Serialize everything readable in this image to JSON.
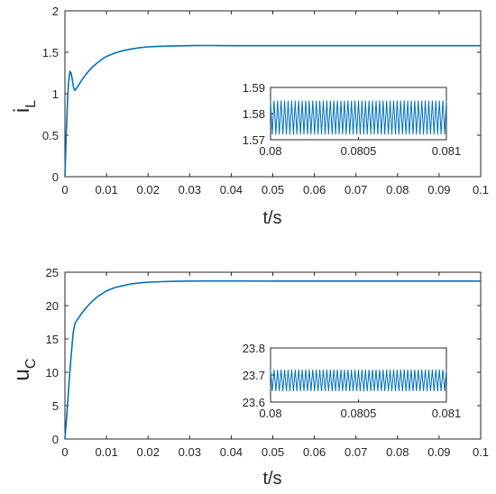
{
  "chart_data": [
    {
      "type": "line",
      "title": "",
      "xlabel": "t/s",
      "ylabel": {
        "base": "i",
        "subscript": "L"
      },
      "xlim": [
        0,
        0.1
      ],
      "ylim": [
        0,
        2
      ],
      "x_ticks": [
        "0",
        "0.01",
        "0.02",
        "0.03",
        "0.04",
        "0.05",
        "0.06",
        "0.07",
        "0.08",
        "0.09",
        "0.1"
      ],
      "y_ticks": [
        "0",
        "0.5",
        "1",
        "1.5",
        "2"
      ],
      "grid": false,
      "series": [
        {
          "color": "#0072BD",
          "x": [
            0,
            0.0003,
            0.0006,
            0.0009,
            0.0012,
            0.0015,
            0.0018,
            0.0021,
            0.0024,
            0.0027,
            0.003,
            0.004,
            0.005,
            0.006,
            0.007,
            0.008,
            0.009,
            0.01,
            0.012,
            0.014,
            0.016,
            0.018,
            0.02,
            0.022,
            0.025,
            0.028,
            0.031,
            0.034,
            0.037,
            0.04,
            0.05,
            0.06,
            0.07,
            0.08,
            0.09,
            0.1
          ],
          "y": [
            0,
            0.5,
            0.9,
            1.15,
            1.27,
            1.25,
            1.16,
            1.07,
            1.04,
            1.06,
            1.08,
            1.16,
            1.23,
            1.29,
            1.34,
            1.38,
            1.42,
            1.45,
            1.49,
            1.52,
            1.54,
            1.555,
            1.565,
            1.57,
            1.575,
            1.578,
            1.58,
            1.582,
            1.58,
            1.579,
            1.579,
            1.579,
            1.579,
            1.579,
            1.579,
            1.579
          ]
        }
      ],
      "inset": {
        "xlim": [
          0.08,
          0.081
        ],
        "ylim": [
          1.57,
          1.59
        ],
        "x_ticks": [
          "0.08",
          "0.0805",
          "0.081"
        ],
        "y_ticks": [
          "1.57",
          "1.58",
          "1.59"
        ],
        "ripple": {
          "mean": 1.5785,
          "amplitude": 0.0065,
          "cycles": 50
        }
      }
    },
    {
      "type": "line",
      "title": "",
      "xlabel": "t/s",
      "ylabel": {
        "base": "u",
        "subscript": "C"
      },
      "xlim": [
        0,
        0.1
      ],
      "ylim": [
        0,
        25
      ],
      "x_ticks": [
        "0",
        "0.01",
        "0.02",
        "0.03",
        "0.04",
        "0.05",
        "0.06",
        "0.07",
        "0.08",
        "0.09",
        "0.1"
      ],
      "y_ticks": [
        "0",
        "5",
        "10",
        "15",
        "20",
        "25"
      ],
      "grid": false,
      "series": [
        {
          "color": "#0072BD",
          "x": [
            0,
            0.0005,
            0.001,
            0.0015,
            0.002,
            0.0024,
            0.003,
            0.004,
            0.005,
            0.006,
            0.007,
            0.008,
            0.009,
            0.01,
            0.012,
            0.014,
            0.016,
            0.018,
            0.02,
            0.023,
            0.026,
            0.03,
            0.035,
            0.04,
            0.05,
            0.06,
            0.07,
            0.08,
            0.09,
            0.1
          ],
          "y": [
            0,
            4,
            8.5,
            12.5,
            16,
            17.3,
            17.9,
            18.8,
            19.6,
            20.3,
            20.9,
            21.4,
            21.8,
            22.2,
            22.7,
            23.0,
            23.25,
            23.4,
            23.5,
            23.58,
            23.63,
            23.67,
            23.69,
            23.69,
            23.68,
            23.68,
            23.68,
            23.68,
            23.68,
            23.68
          ]
        }
      ],
      "inset": {
        "xlim": [
          0.08,
          0.081
        ],
        "ylim": [
          23.6,
          23.8
        ],
        "x_ticks": [
          "0.08",
          "0.0805",
          "0.081"
        ],
        "y_ticks": [
          "23.6",
          "23.7",
          "23.8"
        ],
        "ripple": {
          "mean": 23.68,
          "amplitude": 0.04,
          "cycles": 50
        }
      }
    }
  ]
}
